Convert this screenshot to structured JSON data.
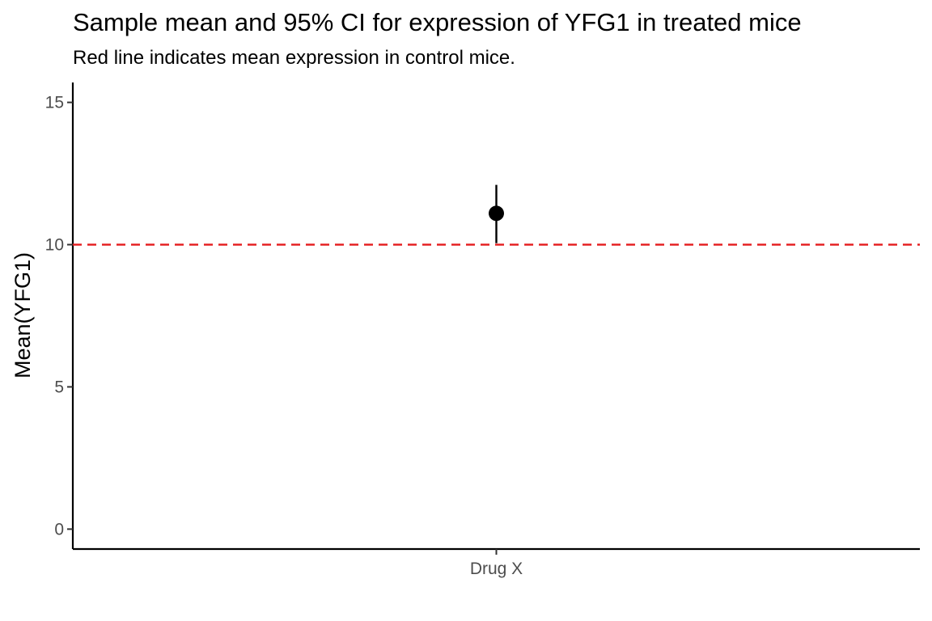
{
  "chart_data": {
    "type": "scatter",
    "title": "Sample mean and 95% CI for expression of YFG1 in treated mice",
    "subtitle": "Red line indicates mean expression in control mice.",
    "xlabel": "",
    "ylabel": "Mean(YFG1)",
    "categories": [
      "Drug X"
    ],
    "series": [
      {
        "points": [
          {
            "x": "Drug X",
            "y": 11.1,
            "ci_low": 10.05,
            "ci_high": 12.1
          }
        ],
        "color": "#000000"
      }
    ],
    "reference_line": {
      "y": 10,
      "color": "#e41a1c",
      "style": "dashed"
    },
    "yticks": [
      0,
      5,
      10,
      15
    ],
    "ytick_labels": [
      "0",
      "5",
      "10",
      "15"
    ],
    "ylim": [
      -0.7,
      15.7
    ],
    "grid": false,
    "legend": "none"
  }
}
